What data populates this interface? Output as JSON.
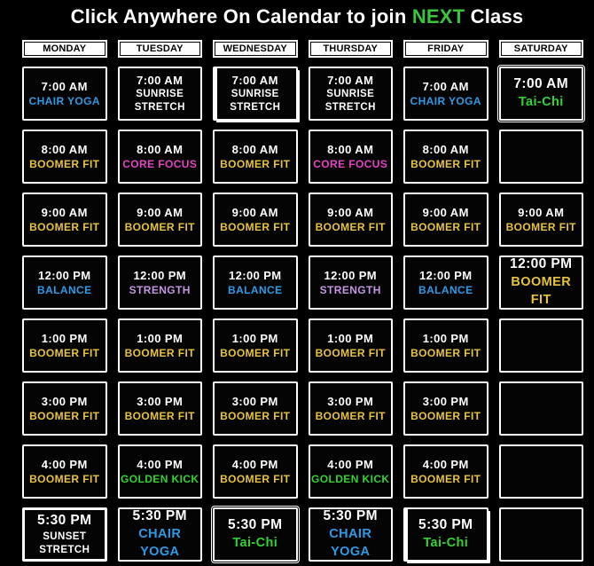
{
  "title": {
    "prefix": "Click Anywhere On Calendar to join ",
    "highlight": "NEXT",
    "suffix": " Class"
  },
  "palette": {
    "page_bg": "#000000",
    "cell_bg": "#040404",
    "border": "#ffffff",
    "white": "#ffffff",
    "blue": "#2f9be7",
    "yellow": "#e8c33e",
    "magenta": "#e643c6",
    "purple": "#c795e5",
    "green": "#32d332",
    "title_green": "#3dc43d"
  },
  "days": [
    "MONDAY",
    "TUESDAY",
    "WEDNESDAY",
    "THURSDAY",
    "FRIDAY",
    "SATURDAY"
  ],
  "schedule": [
    {
      "cells": [
        {
          "time": "7:00 AM",
          "lines": [
            "CHAIR YOGA"
          ],
          "color": "blue"
        },
        {
          "time": "7:00 AM",
          "lines": [
            "SUNRISE",
            "STRETCH"
          ],
          "color": "white"
        },
        {
          "time": "7:00 AM",
          "lines": [
            "SUNRISE",
            "STRETCH"
          ],
          "color": "white",
          "variant": "pressed"
        },
        {
          "time": "7:00 AM",
          "lines": [
            "SUNRISE",
            "STRETCH"
          ],
          "color": "white"
        },
        {
          "time": "7:00 AM",
          "lines": [
            "CHAIR YOGA"
          ],
          "color": "blue"
        },
        {
          "time": "7:00 AM",
          "lines": [
            "Tai-Chi"
          ],
          "color": "green",
          "variant": "outline",
          "size": "large"
        }
      ]
    },
    {
      "cells": [
        {
          "time": "8:00 AM",
          "lines": [
            "BOOMER FIT"
          ],
          "color": "yellow"
        },
        {
          "time": "8:00 AM",
          "lines": [
            "CORE FOCUS"
          ],
          "color": "magenta"
        },
        {
          "time": "8:00 AM",
          "lines": [
            "BOOMER FIT"
          ],
          "color": "yellow"
        },
        {
          "time": "8:00 AM",
          "lines": [
            "CORE FOCUS"
          ],
          "color": "magenta"
        },
        {
          "time": "8:00 AM",
          "lines": [
            "BOOMER FIT"
          ],
          "color": "yellow"
        },
        {
          "empty": true
        }
      ]
    },
    {
      "cells": [
        {
          "time": "9:00 AM",
          "lines": [
            "BOOMER FIT"
          ],
          "color": "yellow"
        },
        {
          "time": "9:00 AM",
          "lines": [
            "BOOMER FIT"
          ],
          "color": "yellow"
        },
        {
          "time": "9:00 AM",
          "lines": [
            "BOOMER FIT"
          ],
          "color": "yellow"
        },
        {
          "time": "9:00 AM",
          "lines": [
            "BOOMER FIT"
          ],
          "color": "yellow"
        },
        {
          "time": "9:00 AM",
          "lines": [
            "BOOMER FIT"
          ],
          "color": "yellow"
        },
        {
          "time": "9:00 AM",
          "lines": [
            "BOOMER FIT"
          ],
          "color": "yellow"
        }
      ]
    },
    {
      "cells": [
        {
          "time": "12:00 PM",
          "lines": [
            "BALANCE"
          ],
          "color": "blue"
        },
        {
          "time": "12:00 PM",
          "lines": [
            "STRENGTH"
          ],
          "color": "purple"
        },
        {
          "time": "12:00 PM",
          "lines": [
            "BALANCE"
          ],
          "color": "blue"
        },
        {
          "time": "12:00 PM",
          "lines": [
            "STRENGTH"
          ],
          "color": "purple"
        },
        {
          "time": "12:00 PM",
          "lines": [
            "BALANCE"
          ],
          "color": "blue"
        },
        {
          "time": "12:00 PM",
          "lines": [
            "BOOMER FIT"
          ],
          "color": "yellow",
          "size": "large"
        }
      ]
    },
    {
      "cells": [
        {
          "time": "1:00 PM",
          "lines": [
            "BOOMER FIT"
          ],
          "color": "yellow"
        },
        {
          "time": "1:00 PM",
          "lines": [
            "BOOMER FIT"
          ],
          "color": "yellow"
        },
        {
          "time": "1:00 PM",
          "lines": [
            "BOOMER FIT"
          ],
          "color": "yellow"
        },
        {
          "time": "1:00 PM",
          "lines": [
            "BOOMER FIT"
          ],
          "color": "yellow"
        },
        {
          "time": "1:00 PM",
          "lines": [
            "BOOMER FIT"
          ],
          "color": "yellow"
        },
        {
          "empty": true
        }
      ]
    },
    {
      "cells": [
        {
          "time": "3:00 PM",
          "lines": [
            "BOOMER FIT"
          ],
          "color": "yellow"
        },
        {
          "time": "3:00 PM",
          "lines": [
            "BOOMER FIT"
          ],
          "color": "yellow"
        },
        {
          "time": "3:00 PM",
          "lines": [
            "BOOMER FIT"
          ],
          "color": "yellow"
        },
        {
          "time": "3:00 PM",
          "lines": [
            "BOOMER FIT"
          ],
          "color": "yellow"
        },
        {
          "time": "3:00 PM",
          "lines": [
            "BOOMER FIT"
          ],
          "color": "yellow"
        },
        {
          "empty": true
        }
      ]
    },
    {
      "cells": [
        {
          "time": "4:00 PM",
          "lines": [
            "BOOMER FIT"
          ],
          "color": "yellow"
        },
        {
          "time": "4:00 PM",
          "lines": [
            "GOLDEN KICK"
          ],
          "color": "green"
        },
        {
          "time": "4:00 PM",
          "lines": [
            "BOOMER FIT"
          ],
          "color": "yellow"
        },
        {
          "time": "4:00 PM",
          "lines": [
            "GOLDEN KICK"
          ],
          "color": "green"
        },
        {
          "time": "4:00 PM",
          "lines": [
            "BOOMER FIT"
          ],
          "color": "yellow"
        },
        {
          "empty": true
        }
      ]
    },
    {
      "cells": [
        {
          "time": "5:30 PM",
          "lines": [
            "SUNSET",
            "STRETCH"
          ],
          "color": "white",
          "variant": "thick",
          "size": "large"
        },
        {
          "time": "5:30 PM",
          "lines": [
            "CHAIR YOGA"
          ],
          "color": "blue",
          "size": "large"
        },
        {
          "time": "5:30 PM",
          "lines": [
            "Tai-Chi"
          ],
          "color": "green",
          "variant": "outline",
          "size": "large"
        },
        {
          "time": "5:30 PM",
          "lines": [
            "CHAIR YOGA"
          ],
          "color": "blue",
          "size": "large"
        },
        {
          "time": "5:30 PM",
          "lines": [
            "Tai-Chi"
          ],
          "color": "green",
          "variant": "pressed",
          "size": "large"
        },
        {
          "empty": true
        }
      ]
    }
  ]
}
